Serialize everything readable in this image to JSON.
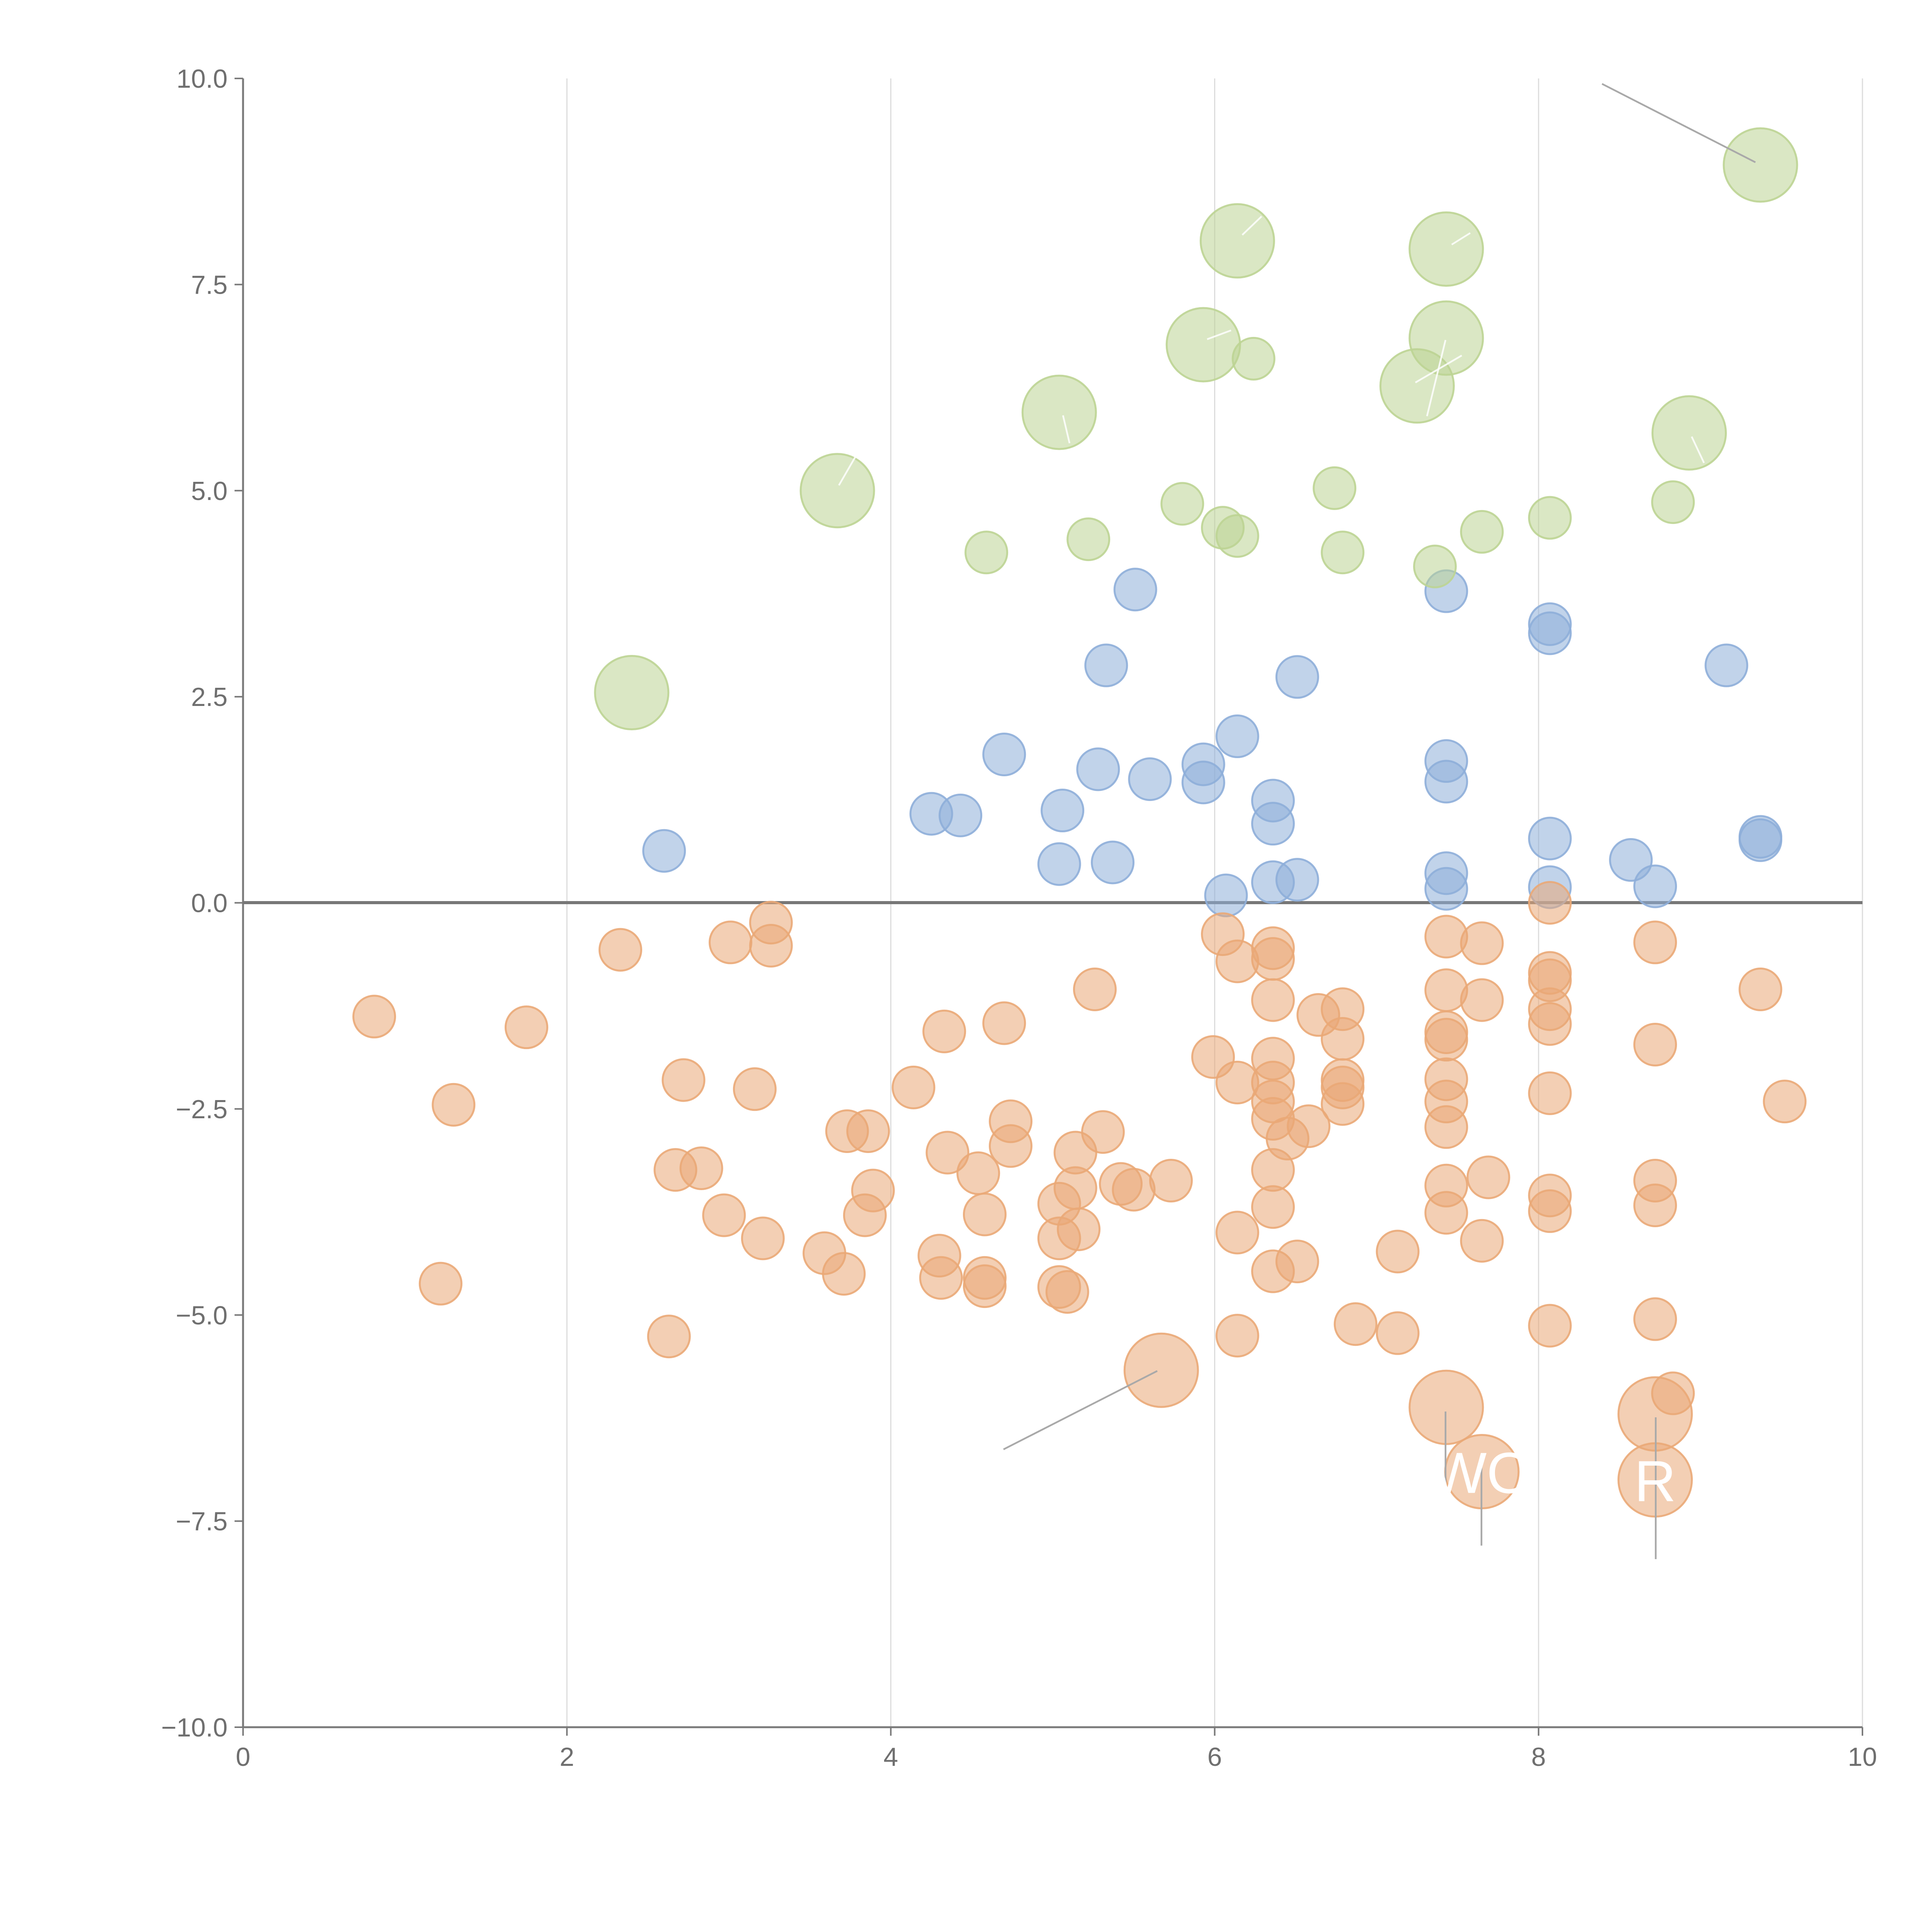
{
  "chart_data": {
    "type": "scatter",
    "title": "",
    "xlabel": "",
    "ylabel": "",
    "xlim": [
      0,
      10
    ],
    "ylim": [
      -10,
      10
    ],
    "xticks": [
      "0",
      "2",
      "4",
      "6",
      "8",
      "10"
    ],
    "yticks": [
      "−10.0",
      "−7.5",
      "−5.0",
      "−2.5",
      "0.0",
      "2.5",
      "5.0",
      "7.5",
      "10.0"
    ],
    "xtick_values": [
      0,
      2,
      4,
      6,
      8,
      10
    ],
    "ytick_values": [
      -10,
      -7.5,
      -5,
      -2.5,
      0,
      2.5,
      5,
      7.5,
      10
    ],
    "grid": "vertical",
    "reference_line_y": 0,
    "colors": {
      "positive": "#8eaed9",
      "negative": "#eaa877",
      "large": "#bcd493"
    },
    "size_units": {
      "small": 1,
      "large": 2
    },
    "series": [
      {
        "name": "positive",
        "color": "#8eaed9",
        "points": [
          [
            2.6,
            0.63
          ],
          [
            4.25,
            1.08
          ],
          [
            4.43,
            1.06
          ],
          [
            4.7,
            1.8
          ],
          [
            5.04,
            0.47
          ],
          [
            5.06,
            1.12
          ],
          [
            5.28,
            1.62
          ],
          [
            5.33,
            2.88
          ],
          [
            5.37,
            0.49
          ],
          [
            5.51,
            3.8
          ],
          [
            5.6,
            1.5
          ],
          [
            5.93,
            1.68
          ],
          [
            5.93,
            1.46
          ],
          [
            6.07,
            0.09
          ],
          [
            6.14,
            2.02
          ],
          [
            6.36,
            1.24
          ],
          [
            6.36,
            0.96
          ],
          [
            6.36,
            0.25
          ],
          [
            6.51,
            0.28
          ],
          [
            6.51,
            2.74
          ],
          [
            7.43,
            3.78
          ],
          [
            7.43,
            1.72
          ],
          [
            7.43,
            1.47
          ],
          [
            7.43,
            0.36
          ],
          [
            7.43,
            0.17
          ],
          [
            8.07,
            3.38
          ],
          [
            8.07,
            3.27
          ],
          [
            8.07,
            0.78
          ],
          [
            8.07,
            0.19
          ],
          [
            8.57,
            0.52
          ],
          [
            8.72,
            0.2
          ],
          [
            9.16,
            2.88
          ],
          [
            9.37,
            0.8
          ],
          [
            9.37,
            0.76
          ]
        ]
      },
      {
        "name": "negative",
        "color": "#eaa877",
        "points": [
          [
            0.81,
            -1.38
          ],
          [
            1.22,
            -4.62
          ],
          [
            1.3,
            -2.45
          ],
          [
            1.75,
            -1.51
          ],
          [
            2.33,
            -0.57
          ],
          [
            2.63,
            -5.26
          ],
          [
            2.67,
            -3.24
          ],
          [
            2.72,
            -2.15
          ],
          [
            2.83,
            -3.22
          ],
          [
            2.97,
            -3.79
          ],
          [
            3.01,
            -0.48
          ],
          [
            3.16,
            -2.26
          ],
          [
            3.21,
            -4.07
          ],
          [
            3.26,
            -0.24
          ],
          [
            3.26,
            -0.52
          ],
          [
            3.59,
            -4.25
          ],
          [
            3.71,
            -4.5
          ],
          [
            3.73,
            -2.77
          ],
          [
            3.84,
            -3.79
          ],
          [
            3.86,
            -2.77
          ],
          [
            3.89,
            -3.49
          ],
          [
            4.14,
            -2.24
          ],
          [
            4.3,
            -4.28
          ],
          [
            4.31,
            -4.55
          ],
          [
            4.33,
            -1.56
          ],
          [
            4.35,
            -3.03
          ],
          [
            4.54,
            -3.28
          ],
          [
            4.58,
            -3.78
          ],
          [
            4.58,
            -4.55
          ],
          [
            4.58,
            -4.65
          ],
          [
            4.7,
            -1.46
          ],
          [
            4.74,
            -2.65
          ],
          [
            4.74,
            -2.95
          ],
          [
            5.04,
            -3.65
          ],
          [
            5.04,
            -4.07
          ],
          [
            5.04,
            -4.66
          ],
          [
            5.09,
            -4.72
          ],
          [
            5.14,
            -3.03
          ],
          [
            5.14,
            -3.46
          ],
          [
            5.16,
            -3.96
          ],
          [
            5.26,
            -1.05
          ],
          [
            5.31,
            -2.78
          ],
          [
            5.42,
            -3.41
          ],
          [
            5.5,
            -3.48
          ],
          [
            5.73,
            -3.37
          ],
          [
            5.99,
            -1.87
          ],
          [
            6.05,
            -0.38
          ],
          [
            6.14,
            -0.71
          ],
          [
            6.14,
            -2.18
          ],
          [
            6.14,
            -4.0
          ],
          [
            6.14,
            -5.25
          ],
          [
            6.36,
            -0.55
          ],
          [
            6.36,
            -0.68
          ],
          [
            6.36,
            -1.18
          ],
          [
            6.36,
            -1.89
          ],
          [
            6.36,
            -2.18
          ],
          [
            6.36,
            -2.41
          ],
          [
            6.36,
            -2.62
          ],
          [
            6.36,
            -3.24
          ],
          [
            6.36,
            -3.69
          ],
          [
            6.36,
            -4.47
          ],
          [
            6.45,
            -2.86
          ],
          [
            6.51,
            -4.35
          ],
          [
            6.58,
            -2.71
          ],
          [
            6.64,
            -1.36
          ],
          [
            6.79,
            -1.29
          ],
          [
            6.79,
            -1.65
          ],
          [
            6.79,
            -2.15
          ],
          [
            6.79,
            -2.24
          ],
          [
            6.79,
            -2.44
          ],
          [
            6.87,
            -5.11
          ],
          [
            7.13,
            -4.23
          ],
          [
            7.13,
            -5.22
          ],
          [
            7.43,
            -0.41
          ],
          [
            7.43,
            -1.06
          ],
          [
            7.43,
            -1.57
          ],
          [
            7.43,
            -1.66
          ],
          [
            7.43,
            -2.14
          ],
          [
            7.43,
            -2.41
          ],
          [
            7.43,
            -2.72
          ],
          [
            7.43,
            -3.43
          ],
          [
            7.43,
            -3.76
          ],
          [
            7.65,
            -0.49
          ],
          [
            7.65,
            -1.18
          ],
          [
            7.65,
            -4.1
          ],
          [
            7.69,
            -3.33
          ],
          [
            8.07,
            0.0
          ],
          [
            8.07,
            -0.85
          ],
          [
            8.07,
            -0.94
          ],
          [
            8.07,
            -1.29
          ],
          [
            8.07,
            -1.47
          ],
          [
            8.07,
            -2.31
          ],
          [
            8.07,
            -3.55
          ],
          [
            8.07,
            -3.74
          ],
          [
            8.07,
            -5.13
          ],
          [
            8.72,
            -0.48
          ],
          [
            8.72,
            -1.72
          ],
          [
            8.72,
            -3.37
          ],
          [
            8.72,
            -3.67
          ],
          [
            8.72,
            -5.05
          ],
          [
            8.83,
            -5.95
          ],
          [
            9.37,
            -1.05
          ],
          [
            9.52,
            -2.41
          ]
        ]
      },
      {
        "name": "large-positive",
        "color": "#bcd493",
        "points": [
          [
            2.4,
            2.55,
            2
          ],
          [
            3.67,
            5.0,
            2
          ],
          [
            4.59,
            4.25,
            1
          ],
          [
            5.04,
            5.95,
            2
          ],
          [
            5.22,
            4.41,
            1
          ],
          [
            5.8,
            4.84,
            1
          ],
          [
            5.93,
            6.77,
            2
          ],
          [
            6.05,
            4.55,
            1
          ],
          [
            6.14,
            8.03,
            2
          ],
          [
            6.14,
            4.45,
            1
          ],
          [
            6.24,
            6.6,
            1
          ],
          [
            6.74,
            5.03,
            1
          ],
          [
            6.79,
            4.25,
            1
          ],
          [
            7.25,
            6.27,
            2
          ],
          [
            7.36,
            4.08,
            1
          ],
          [
            7.43,
            7.93,
            2
          ],
          [
            7.43,
            6.85,
            2
          ],
          [
            7.65,
            4.5,
            1
          ],
          [
            8.07,
            4.67,
            1
          ],
          [
            8.83,
            4.86,
            1
          ],
          [
            8.93,
            5.7,
            2
          ],
          [
            9.37,
            8.95,
            2
          ]
        ]
      },
      {
        "name": "large-negative",
        "color": "#eaa877",
        "points": [
          [
            5.67,
            -5.67,
            2
          ],
          [
            7.43,
            -6.12,
            2
          ],
          [
            7.65,
            -6.9,
            2
          ],
          [
            8.72,
            -6.2,
            2
          ],
          [
            8.72,
            -7.0,
            2
          ]
        ]
      }
    ],
    "annotations": [
      {
        "text": "WO",
        "x": 7.65,
        "y": -6.9
      },
      {
        "text": "R",
        "x": 8.72,
        "y": -7.0
      }
    ]
  }
}
